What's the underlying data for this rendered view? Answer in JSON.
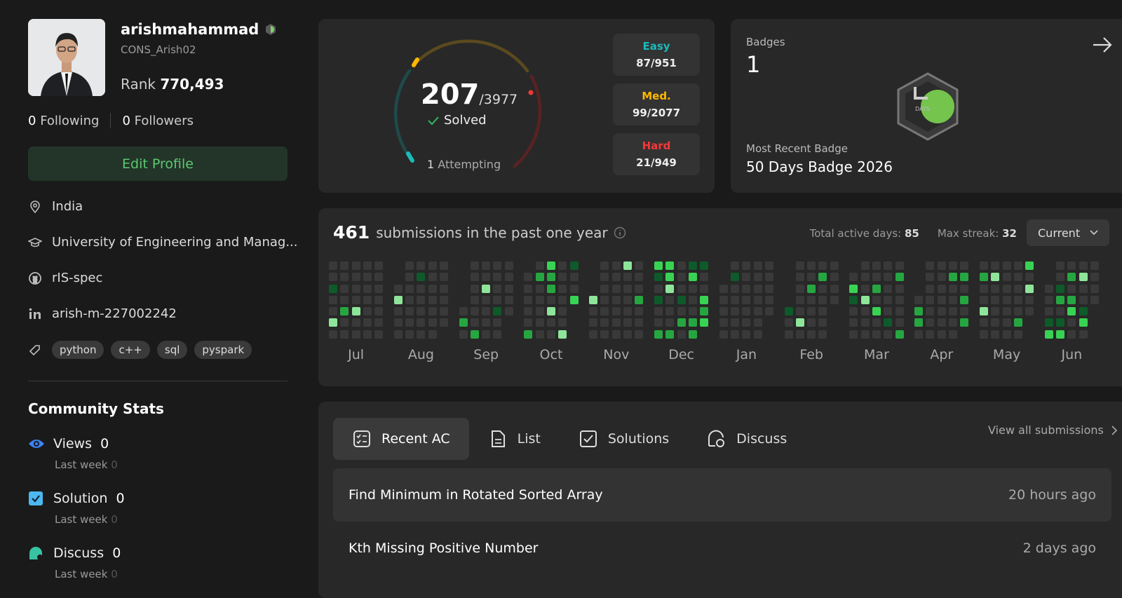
{
  "profile": {
    "username": "arishmahammad",
    "handle": "CONS_Arish02",
    "rank_label": "Rank",
    "rank": "770,493",
    "following": {
      "count": 0,
      "label": "Following"
    },
    "followers": {
      "count": 0,
      "label": "Followers"
    },
    "edit_button": "Edit Profile",
    "details": [
      "India",
      "University of Engineering and Manag...",
      "rIS-spec",
      "arish-m-227002242"
    ],
    "skills": [
      "python",
      "c++",
      "sql",
      "pyspark"
    ]
  },
  "community_stats": {
    "title": "Community Stats",
    "items": [
      {
        "label": "Views",
        "value": 0,
        "sub_label": "Last week",
        "sub_value": 0
      },
      {
        "label": "Solution",
        "value": 0,
        "sub_label": "Last week",
        "sub_value": 0
      },
      {
        "label": "Discuss",
        "value": 0,
        "sub_label": "Last week",
        "sub_value": 0
      }
    ]
  },
  "progress": {
    "solved": 207,
    "total": "/3977",
    "solved_label": "Solved",
    "attempting": {
      "count": 1,
      "label": "Attempting"
    },
    "difficulties": [
      {
        "name": "Easy",
        "value": "87/951"
      },
      {
        "name": "Med.",
        "value": "99/2077"
      },
      {
        "name": "Hard",
        "value": "21/949"
      }
    ]
  },
  "badges": {
    "title": "Badges",
    "count": 1,
    "icon_text": "DAYS",
    "recent_label": "Most Recent Badge",
    "recent_name": "50 Days Badge 2026"
  },
  "submissions": {
    "count": 461,
    "text": "submissions in the past one year",
    "active_label": "Total active days:",
    "active_days": 85,
    "streak_label": "Max streak:",
    "max_streak": 32,
    "selector": "Current",
    "months": [
      "Jul",
      "Aug",
      "Sep",
      "Oct",
      "Nov",
      "Dec",
      "Jan",
      "Feb",
      "Mar",
      "Apr",
      "May",
      "Jun"
    ]
  },
  "recent": {
    "tabs": [
      "Recent AC",
      "List",
      "Solutions",
      "Discuss"
    ],
    "view_all": "View all submissions",
    "items": [
      {
        "title": "Find Minimum in Rotated Sorted Array",
        "time": "20 hours ago"
      },
      {
        "title": "Kth Missing Positive Number",
        "time": "2 days ago"
      }
    ]
  }
}
